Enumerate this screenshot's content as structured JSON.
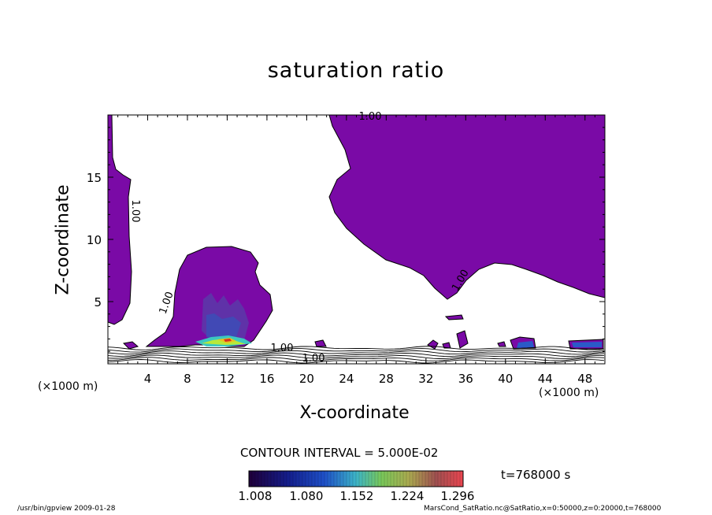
{
  "chart_data": {
    "type": "contour",
    "title": "saturation ratio",
    "xlabel": "X-coordinate",
    "ylabel": "Z-coordinate",
    "x_unit": "(×1000 m)",
    "x_unit_right": "(×1000 m)",
    "xlim": [
      0,
      50
    ],
    "ylim": [
      0,
      20
    ],
    "x_ticks": [
      "4",
      "8",
      "12",
      "16",
      "20",
      "24",
      "28",
      "32",
      "36",
      "40",
      "44",
      "48"
    ],
    "y_ticks": [
      "5",
      "10",
      "15"
    ],
    "contour_labels": [
      "1.00",
      "1.00",
      "1.00",
      "1.00",
      "1.00",
      "1.00"
    ],
    "contour_interval_text": "CONTOUR INTERVAL = 5.000E-02",
    "time_label": "t=768000 s",
    "colorbar": {
      "ticks": [
        "1.008",
        "1.080",
        "1.152",
        "1.224",
        "1.296"
      ],
      "range": [
        0.99,
        1.33
      ]
    },
    "fill_color": "#7a0aa6"
  },
  "footer": {
    "left": "/usr/bin/gpview  2009-01-28",
    "right": "MarsCond_SatRatio.nc@SatRatio,x=0:50000,z=0:20000,t=768000"
  }
}
